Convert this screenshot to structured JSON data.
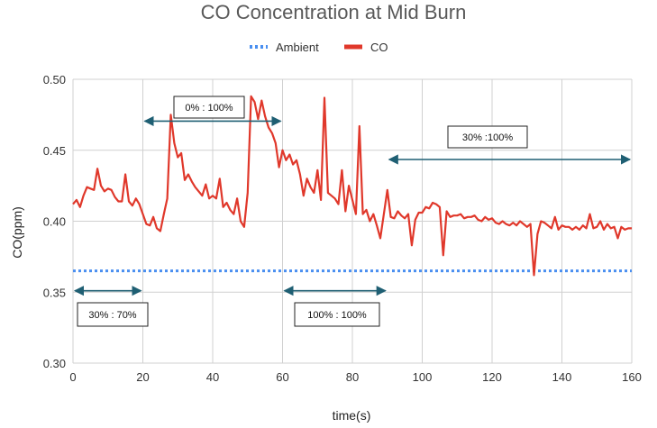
{
  "chart_data": {
    "type": "line",
    "title": "CO Concentration at Mid Burn",
    "xlabel": "time(s)",
    "ylabel": "CO(ppm)",
    "xlim": [
      0,
      160
    ],
    "ylim": [
      0.3,
      0.5
    ],
    "x_ticks": [
      "0",
      "20",
      "40",
      "60",
      "80",
      "100",
      "120",
      "140",
      "160"
    ],
    "y_ticks": [
      "0.30",
      "0.35",
      "0.40",
      "0.45",
      "0.50"
    ],
    "grid": true,
    "legend_position": "top",
    "colors": {
      "ambient": "#4a8ff0",
      "co": "#e0382b",
      "annotation": "#1f5f73"
    },
    "series": [
      {
        "name": "Ambient",
        "style": "dotted",
        "x": [
          0,
          160
        ],
        "values": [
          0.365,
          0.365
        ]
      },
      {
        "name": "CO",
        "style": "solid",
        "x": [
          0,
          1,
          2,
          3,
          4,
          5,
          6,
          7,
          8,
          9,
          10,
          11,
          12,
          13,
          14,
          15,
          16,
          17,
          18,
          19,
          20,
          21,
          22,
          23,
          24,
          25,
          26,
          27,
          28,
          29,
          30,
          31,
          32,
          33,
          34,
          35,
          36,
          37,
          38,
          39,
          40,
          41,
          42,
          43,
          44,
          45,
          46,
          47,
          48,
          49,
          50,
          51,
          52,
          53,
          54,
          55,
          56,
          57,
          58,
          59,
          60,
          61,
          62,
          63,
          64,
          65,
          66,
          67,
          68,
          69,
          70,
          71,
          72,
          73,
          74,
          75,
          76,
          77,
          78,
          79,
          80,
          81,
          82,
          83,
          84,
          85,
          86,
          87,
          88,
          89,
          90,
          91,
          92,
          93,
          94,
          95,
          96,
          97,
          98,
          99,
          100,
          101,
          102,
          103,
          104,
          105,
          106,
          107,
          108,
          109,
          110,
          111,
          112,
          113,
          114,
          115,
          116,
          117,
          118,
          119,
          120,
          121,
          122,
          123,
          124,
          125,
          126,
          127,
          128,
          129,
          130,
          131,
          132,
          133,
          134,
          135,
          136,
          137,
          138,
          139,
          140,
          141,
          142,
          143,
          144,
          145,
          146,
          147,
          148,
          149,
          150,
          151,
          152,
          153,
          154,
          155,
          156,
          157,
          158,
          159,
          160
        ],
        "values": [
          0.412,
          0.415,
          0.41,
          0.418,
          0.424,
          0.423,
          0.422,
          0.437,
          0.425,
          0.421,
          0.423,
          0.422,
          0.417,
          0.414,
          0.414,
          0.433,
          0.414,
          0.411,
          0.416,
          0.412,
          0.405,
          0.398,
          0.397,
          0.403,
          0.395,
          0.393,
          0.405,
          0.416,
          0.475,
          0.455,
          0.445,
          0.448,
          0.429,
          0.433,
          0.428,
          0.424,
          0.421,
          0.418,
          0.426,
          0.416,
          0.418,
          0.416,
          0.43,
          0.41,
          0.413,
          0.408,
          0.405,
          0.416,
          0.4,
          0.396,
          0.42,
          0.488,
          0.484,
          0.472,
          0.485,
          0.474,
          0.466,
          0.462,
          0.455,
          0.438,
          0.45,
          0.443,
          0.447,
          0.44,
          0.443,
          0.433,
          0.418,
          0.43,
          0.424,
          0.42,
          0.436,
          0.415,
          0.487,
          0.42,
          0.418,
          0.416,
          0.412,
          0.436,
          0.407,
          0.425,
          0.415,
          0.405,
          0.467,
          0.405,
          0.408,
          0.4,
          0.405,
          0.397,
          0.388,
          0.405,
          0.422,
          0.403,
          0.402,
          0.407,
          0.404,
          0.402,
          0.405,
          0.383,
          0.401,
          0.406,
          0.406,
          0.41,
          0.409,
          0.413,
          0.412,
          0.41,
          0.376,
          0.407,
          0.403,
          0.404,
          0.404,
          0.405,
          0.402,
          0.403,
          0.403,
          0.404,
          0.401,
          0.4,
          0.403,
          0.401,
          0.402,
          0.399,
          0.398,
          0.4,
          0.398,
          0.397,
          0.399,
          0.397,
          0.4,
          0.398,
          0.396,
          0.398,
          0.362,
          0.391,
          0.4,
          0.399,
          0.397,
          0.395,
          0.403,
          0.394,
          0.397,
          0.396,
          0.396,
          0.394,
          0.396,
          0.394,
          0.397,
          0.395,
          0.405,
          0.395,
          0.396,
          0.4,
          0.394,
          0.398,
          0.395,
          0.396,
          0.388,
          0.396,
          0.394,
          0.395,
          0.395
        ]
      }
    ],
    "annotations": [
      {
        "label": "30% : 70%",
        "x_start": 0,
        "x_end": 20,
        "y_arrow": 0.351
      },
      {
        "label": "0% : 100%",
        "x_start": 20,
        "x_end": 60,
        "y_arrow": 0.4705
      },
      {
        "label": "100% : 100%",
        "x_start": 60,
        "x_end": 90,
        "y_arrow": 0.351
      },
      {
        "label": "30% :100%",
        "x_start": 90,
        "x_end": 160,
        "y_arrow": 0.4435
      }
    ]
  }
}
